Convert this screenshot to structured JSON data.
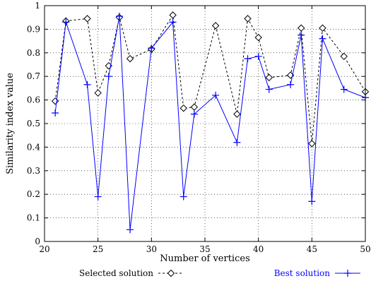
{
  "chart_data": {
    "type": "line",
    "title": "",
    "xlabel": "Number of vertices",
    "ylabel": "Similarity index value",
    "xlim": [
      20,
      50
    ],
    "ylim": [
      0,
      1
    ],
    "xticks": [
      20,
      25,
      30,
      35,
      40,
      45,
      50
    ],
    "yticks": [
      0,
      0.1,
      0.2,
      0.3,
      0.4,
      0.5,
      0.6,
      0.7,
      0.8,
      0.9,
      1
    ],
    "xtick_labels": [
      "20",
      "25",
      "30",
      "35",
      "40",
      "45",
      "50"
    ],
    "ytick_labels": [
      "0",
      "0.1",
      "0.2",
      "0.3",
      "0.4",
      "0.5",
      "0.6",
      "0.7",
      "0.8",
      "0.9",
      "1"
    ],
    "grid": true,
    "legend_position": "bottom",
    "series": [
      {
        "name": "Selected solution",
        "style": "dashed",
        "marker": "diamond",
        "color": "#000000",
        "x": [
          21,
          22,
          24,
          25,
          26,
          27,
          28,
          30,
          32,
          33,
          34,
          36,
          38,
          39,
          40,
          41,
          43,
          44,
          45,
          46,
          48,
          50
        ],
        "y": [
          0.595,
          0.935,
          0.945,
          0.63,
          0.745,
          0.95,
          0.775,
          0.815,
          0.96,
          0.565,
          0.57,
          0.915,
          0.54,
          0.945,
          0.865,
          0.695,
          0.705,
          0.905,
          0.415,
          0.905,
          0.785,
          0.635
        ]
      },
      {
        "name": "Best solution",
        "style": "solid",
        "marker": "plus",
        "color": "#0000ff",
        "x": [
          21,
          22,
          24,
          25,
          26,
          27,
          28,
          30,
          32,
          33,
          34,
          36,
          38,
          39,
          40,
          41,
          43,
          44,
          45,
          46,
          48,
          50
        ],
        "y": [
          0.545,
          0.93,
          0.665,
          0.19,
          0.7,
          0.955,
          0.05,
          0.82,
          0.93,
          0.19,
          0.54,
          0.62,
          0.42,
          0.775,
          0.785,
          0.645,
          0.665,
          0.875,
          0.17,
          0.86,
          0.645,
          0.61
        ]
      }
    ]
  }
}
